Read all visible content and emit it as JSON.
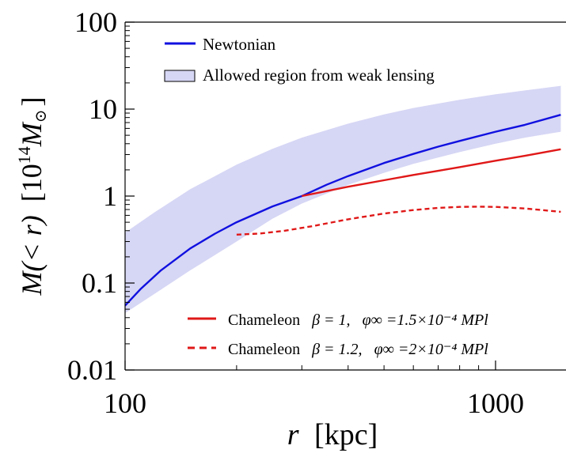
{
  "chart_data": {
    "type": "line",
    "x_scale": "log",
    "y_scale": "log",
    "xlim": [
      100,
      1500
    ],
    "ylim": [
      0.01,
      100
    ],
    "x_ticks": [
      {
        "value": 100,
        "label": "100"
      },
      {
        "value": 1000,
        "label": "1000"
      }
    ],
    "y_ticks": [
      {
        "value": 0.01,
        "label": "0.01"
      },
      {
        "value": 0.1,
        "label": "0.1"
      },
      {
        "value": 1,
        "label": "1"
      },
      {
        "value": 10,
        "label": "10"
      },
      {
        "value": 100,
        "label": "100"
      }
    ],
    "xlabel": {
      "var": "r",
      "unit": "[kpc]"
    },
    "ylabel": {
      "main": "M(< r)",
      "unit_prefix": "[10",
      "unit_exp": "14",
      "unit_var": "M",
      "unit_sub": "⊙",
      "unit_suffix": "]"
    },
    "band": {
      "name": "Allowed region from weak lensing",
      "color": "#d6d6f5",
      "x": [
        100,
        120,
        150,
        200,
        250,
        300,
        400,
        500,
        600,
        800,
        1000,
        1200,
        1500
      ],
      "y_low": [
        0.045,
        0.075,
        0.14,
        0.3,
        0.55,
        0.82,
        1.35,
        1.85,
        2.35,
        3.2,
        4.0,
        4.7,
        5.5
      ],
      "y_high": [
        0.38,
        0.65,
        1.2,
        2.3,
        3.5,
        4.7,
        6.8,
        8.7,
        10.3,
        12.8,
        14.8,
        16.4,
        18.5
      ]
    },
    "series": [
      {
        "name": "Newtonian",
        "color": "#1010e0",
        "dash": "solid",
        "x": [
          100,
          110,
          125,
          150,
          175,
          200,
          250,
          300,
          350,
          400,
          500,
          600,
          700,
          800,
          1000,
          1200,
          1500
        ],
        "y": [
          0.055,
          0.085,
          0.14,
          0.25,
          0.37,
          0.5,
          0.76,
          1.0,
          1.35,
          1.7,
          2.4,
          3.05,
          3.7,
          4.3,
          5.5,
          6.6,
          8.6
        ]
      },
      {
        "name": "Chameleon β = 1, φ∞ = 1.5 × 10⁻⁴ MPl",
        "label": "Chameleon",
        "beta_label": "β = 1,",
        "phi_label": "φ∞ =1.5×10⁻⁴ MPl",
        "color": "#e01818",
        "dash": "solid",
        "x": [
          300,
          400,
          500,
          600,
          700,
          800,
          1000,
          1200,
          1500
        ],
        "y": [
          1.0,
          1.28,
          1.52,
          1.75,
          1.95,
          2.15,
          2.55,
          2.9,
          3.45
        ]
      },
      {
        "name": "Chameleon β = 1.2, φ∞ = 2 × 10⁻⁴ MPl",
        "label": "Chameleon",
        "beta_label": "β = 1.2,",
        "phi_label": "φ∞ =2×10⁻⁴ MPl",
        "color": "#e01818",
        "dash": "dashed",
        "x": [
          200,
          230,
          270,
          320,
          400,
          500,
          600,
          700,
          800,
          900,
          1000,
          1200,
          1500
        ],
        "y": [
          0.36,
          0.37,
          0.4,
          0.45,
          0.54,
          0.63,
          0.69,
          0.73,
          0.75,
          0.755,
          0.75,
          0.72,
          0.66
        ]
      }
    ],
    "legend_top": [
      {
        "label": "Newtonian",
        "kind": "line",
        "color": "#1010e0"
      },
      {
        "label": "Allowed region from weak lensing",
        "kind": "box",
        "color": "#d6d6f5"
      }
    ]
  }
}
